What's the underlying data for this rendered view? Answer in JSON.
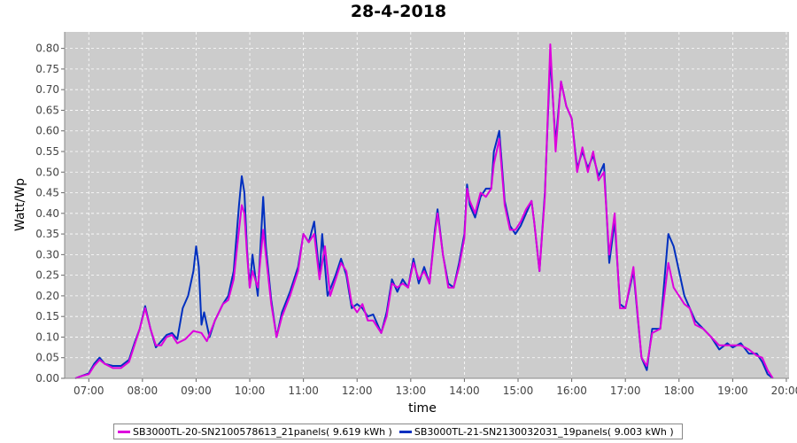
{
  "chart_data": {
    "type": "line",
    "title": "28-4-2018",
    "xlabel": "time",
    "ylabel": "Watt/Wp",
    "xlim": [
      6.55,
      20.05
    ],
    "ylim": [
      0,
      0.84
    ],
    "x_ticks": [
      "07:00",
      "08:00",
      "09:00",
      "10:00",
      "11:00",
      "12:00",
      "13:00",
      "14:00",
      "15:00",
      "16:00",
      "17:00",
      "18:00",
      "19:00",
      "20:00"
    ],
    "y_ticks": [
      "0.00",
      "0.05",
      "0.10",
      "0.15",
      "0.20",
      "0.25",
      "0.30",
      "0.35",
      "0.40",
      "0.45",
      "0.50",
      "0.55",
      "0.60",
      "0.65",
      "0.70",
      "0.75",
      "0.80"
    ],
    "grid": true,
    "legend_position": "bottom",
    "background": "#cccccc",
    "series": [
      {
        "name": "SB3000TL-20-SN2100578613_21panels( 9.619 kWh )",
        "color": "#dd00dd",
        "points": [
          [
            6.75,
            0.0
          ],
          [
            6.85,
            0.005
          ],
          [
            7.0,
            0.01
          ],
          [
            7.1,
            0.03
          ],
          [
            7.2,
            0.045
          ],
          [
            7.3,
            0.035
          ],
          [
            7.45,
            0.025
          ],
          [
            7.6,
            0.025
          ],
          [
            7.75,
            0.04
          ],
          [
            7.85,
            0.08
          ],
          [
            7.95,
            0.12
          ],
          [
            8.05,
            0.17
          ],
          [
            8.15,
            0.12
          ],
          [
            8.25,
            0.08
          ],
          [
            8.35,
            0.08
          ],
          [
            8.45,
            0.1
          ],
          [
            8.55,
            0.105
          ],
          [
            8.65,
            0.085
          ],
          [
            8.8,
            0.095
          ],
          [
            8.95,
            0.115
          ],
          [
            9.1,
            0.11
          ],
          [
            9.2,
            0.09
          ],
          [
            9.35,
            0.14
          ],
          [
            9.5,
            0.18
          ],
          [
            9.6,
            0.19
          ],
          [
            9.7,
            0.24
          ],
          [
            9.8,
            0.36
          ],
          [
            9.85,
            0.42
          ],
          [
            9.9,
            0.4
          ],
          [
            9.95,
            0.3
          ],
          [
            10.0,
            0.22
          ],
          [
            10.05,
            0.26
          ],
          [
            10.15,
            0.22
          ],
          [
            10.25,
            0.36
          ],
          [
            10.3,
            0.3
          ],
          [
            10.4,
            0.18
          ],
          [
            10.5,
            0.1
          ],
          [
            10.6,
            0.15
          ],
          [
            10.75,
            0.2
          ],
          [
            10.9,
            0.26
          ],
          [
            11.0,
            0.35
          ],
          [
            11.1,
            0.33
          ],
          [
            11.2,
            0.35
          ],
          [
            11.3,
            0.24
          ],
          [
            11.4,
            0.32
          ],
          [
            11.5,
            0.2
          ],
          [
            11.6,
            0.24
          ],
          [
            11.7,
            0.28
          ],
          [
            11.8,
            0.26
          ],
          [
            11.9,
            0.18
          ],
          [
            12.0,
            0.16
          ],
          [
            12.1,
            0.18
          ],
          [
            12.2,
            0.14
          ],
          [
            12.3,
            0.14
          ],
          [
            12.45,
            0.11
          ],
          [
            12.55,
            0.15
          ],
          [
            12.65,
            0.23
          ],
          [
            12.75,
            0.22
          ],
          [
            12.85,
            0.23
          ],
          [
            12.95,
            0.22
          ],
          [
            13.05,
            0.28
          ],
          [
            13.15,
            0.24
          ],
          [
            13.25,
            0.26
          ],
          [
            13.35,
            0.23
          ],
          [
            13.45,
            0.35
          ],
          [
            13.5,
            0.4
          ],
          [
            13.6,
            0.3
          ],
          [
            13.7,
            0.22
          ],
          [
            13.8,
            0.22
          ],
          [
            13.9,
            0.27
          ],
          [
            14.0,
            0.34
          ],
          [
            14.05,
            0.46
          ],
          [
            14.1,
            0.43
          ],
          [
            14.2,
            0.4
          ],
          [
            14.3,
            0.45
          ],
          [
            14.4,
            0.44
          ],
          [
            14.5,
            0.46
          ],
          [
            14.55,
            0.52
          ],
          [
            14.65,
            0.58
          ],
          [
            14.75,
            0.42
          ],
          [
            14.85,
            0.36
          ],
          [
            14.95,
            0.36
          ],
          [
            15.05,
            0.38
          ],
          [
            15.15,
            0.41
          ],
          [
            15.25,
            0.43
          ],
          [
            15.3,
            0.38
          ],
          [
            15.4,
            0.26
          ],
          [
            15.5,
            0.44
          ],
          [
            15.6,
            0.81
          ],
          [
            15.7,
            0.55
          ],
          [
            15.8,
            0.72
          ],
          [
            15.9,
            0.66
          ],
          [
            16.0,
            0.63
          ],
          [
            16.1,
            0.5
          ],
          [
            16.2,
            0.56
          ],
          [
            16.3,
            0.5
          ],
          [
            16.4,
            0.55
          ],
          [
            16.5,
            0.48
          ],
          [
            16.6,
            0.5
          ],
          [
            16.7,
            0.3
          ],
          [
            16.8,
            0.4
          ],
          [
            16.9,
            0.17
          ],
          [
            17.0,
            0.17
          ],
          [
            17.15,
            0.27
          ],
          [
            17.3,
            0.05
          ],
          [
            17.4,
            0.03
          ],
          [
            17.5,
            0.11
          ],
          [
            17.65,
            0.12
          ],
          [
            17.8,
            0.28
          ],
          [
            17.9,
            0.22
          ],
          [
            18.0,
            0.2
          ],
          [
            18.1,
            0.18
          ],
          [
            18.2,
            0.17
          ],
          [
            18.3,
            0.13
          ],
          [
            18.45,
            0.12
          ],
          [
            18.6,
            0.1
          ],
          [
            18.75,
            0.08
          ],
          [
            18.9,
            0.08
          ],
          [
            19.0,
            0.08
          ],
          [
            19.15,
            0.08
          ],
          [
            19.3,
            0.07
          ],
          [
            19.45,
            0.055
          ],
          [
            19.55,
            0.05
          ],
          [
            19.65,
            0.02
          ],
          [
            19.75,
            0.0
          ]
        ]
      },
      {
        "name": "SB3000TL-21-SN2130032031_19panels( 9.003 kWh )",
        "color": "#0030c0",
        "points": [
          [
            6.75,
            0.0
          ],
          [
            6.85,
            0.005
          ],
          [
            7.0,
            0.012
          ],
          [
            7.1,
            0.035
          ],
          [
            7.2,
            0.05
          ],
          [
            7.3,
            0.035
          ],
          [
            7.45,
            0.03
          ],
          [
            7.6,
            0.03
          ],
          [
            7.75,
            0.045
          ],
          [
            7.85,
            0.085
          ],
          [
            7.95,
            0.12
          ],
          [
            8.05,
            0.175
          ],
          [
            8.15,
            0.12
          ],
          [
            8.25,
            0.075
          ],
          [
            8.35,
            0.09
          ],
          [
            8.45,
            0.105
          ],
          [
            8.55,
            0.11
          ],
          [
            8.65,
            0.095
          ],
          [
            8.75,
            0.17
          ],
          [
            8.85,
            0.2
          ],
          [
            8.95,
            0.26
          ],
          [
            9.0,
            0.32
          ],
          [
            9.05,
            0.27
          ],
          [
            9.1,
            0.13
          ],
          [
            9.15,
            0.16
          ],
          [
            9.25,
            0.1
          ],
          [
            9.35,
            0.14
          ],
          [
            9.5,
            0.18
          ],
          [
            9.6,
            0.2
          ],
          [
            9.7,
            0.26
          ],
          [
            9.8,
            0.42
          ],
          [
            9.85,
            0.49
          ],
          [
            9.9,
            0.45
          ],
          [
            9.95,
            0.31
          ],
          [
            10.0,
            0.22
          ],
          [
            10.05,
            0.3
          ],
          [
            10.15,
            0.2
          ],
          [
            10.25,
            0.44
          ],
          [
            10.3,
            0.32
          ],
          [
            10.4,
            0.19
          ],
          [
            10.5,
            0.1
          ],
          [
            10.6,
            0.16
          ],
          [
            10.75,
            0.21
          ],
          [
            10.9,
            0.27
          ],
          [
            11.0,
            0.35
          ],
          [
            11.1,
            0.33
          ],
          [
            11.2,
            0.38
          ],
          [
            11.3,
            0.25
          ],
          [
            11.35,
            0.35
          ],
          [
            11.45,
            0.2
          ],
          [
            11.6,
            0.25
          ],
          [
            11.7,
            0.29
          ],
          [
            11.8,
            0.25
          ],
          [
            11.9,
            0.17
          ],
          [
            12.0,
            0.18
          ],
          [
            12.1,
            0.17
          ],
          [
            12.2,
            0.15
          ],
          [
            12.3,
            0.155
          ],
          [
            12.45,
            0.11
          ],
          [
            12.55,
            0.16
          ],
          [
            12.65,
            0.24
          ],
          [
            12.75,
            0.21
          ],
          [
            12.85,
            0.24
          ],
          [
            12.95,
            0.22
          ],
          [
            13.05,
            0.29
          ],
          [
            13.15,
            0.23
          ],
          [
            13.25,
            0.27
          ],
          [
            13.35,
            0.23
          ],
          [
            13.45,
            0.36
          ],
          [
            13.5,
            0.41
          ],
          [
            13.6,
            0.3
          ],
          [
            13.7,
            0.23
          ],
          [
            13.8,
            0.22
          ],
          [
            13.9,
            0.28
          ],
          [
            14.0,
            0.35
          ],
          [
            14.05,
            0.47
          ],
          [
            14.1,
            0.42
          ],
          [
            14.2,
            0.39
          ],
          [
            14.3,
            0.44
          ],
          [
            14.4,
            0.46
          ],
          [
            14.5,
            0.46
          ],
          [
            14.55,
            0.55
          ],
          [
            14.65,
            0.6
          ],
          [
            14.75,
            0.43
          ],
          [
            14.85,
            0.37
          ],
          [
            14.95,
            0.35
          ],
          [
            15.05,
            0.37
          ],
          [
            15.15,
            0.4
          ],
          [
            15.25,
            0.43
          ],
          [
            15.3,
            0.38
          ],
          [
            15.4,
            0.26
          ],
          [
            15.5,
            0.45
          ],
          [
            15.6,
            0.78
          ],
          [
            15.7,
            0.57
          ],
          [
            15.8,
            0.72
          ],
          [
            15.9,
            0.66
          ],
          [
            16.0,
            0.63
          ],
          [
            16.1,
            0.51
          ],
          [
            16.2,
            0.55
          ],
          [
            16.3,
            0.51
          ],
          [
            16.4,
            0.54
          ],
          [
            16.5,
            0.49
          ],
          [
            16.6,
            0.52
          ],
          [
            16.7,
            0.28
          ],
          [
            16.8,
            0.38
          ],
          [
            16.9,
            0.18
          ],
          [
            17.0,
            0.17
          ],
          [
            17.15,
            0.26
          ],
          [
            17.3,
            0.05
          ],
          [
            17.4,
            0.02
          ],
          [
            17.5,
            0.12
          ],
          [
            17.65,
            0.12
          ],
          [
            17.8,
            0.35
          ],
          [
            17.9,
            0.32
          ],
          [
            18.0,
            0.26
          ],
          [
            18.1,
            0.2
          ],
          [
            18.2,
            0.17
          ],
          [
            18.3,
            0.14
          ],
          [
            18.45,
            0.12
          ],
          [
            18.6,
            0.1
          ],
          [
            18.75,
            0.07
          ],
          [
            18.9,
            0.085
          ],
          [
            19.0,
            0.075
          ],
          [
            19.15,
            0.085
          ],
          [
            19.3,
            0.06
          ],
          [
            19.45,
            0.06
          ],
          [
            19.55,
            0.04
          ],
          [
            19.65,
            0.01
          ],
          [
            19.75,
            0.0
          ]
        ]
      }
    ]
  }
}
